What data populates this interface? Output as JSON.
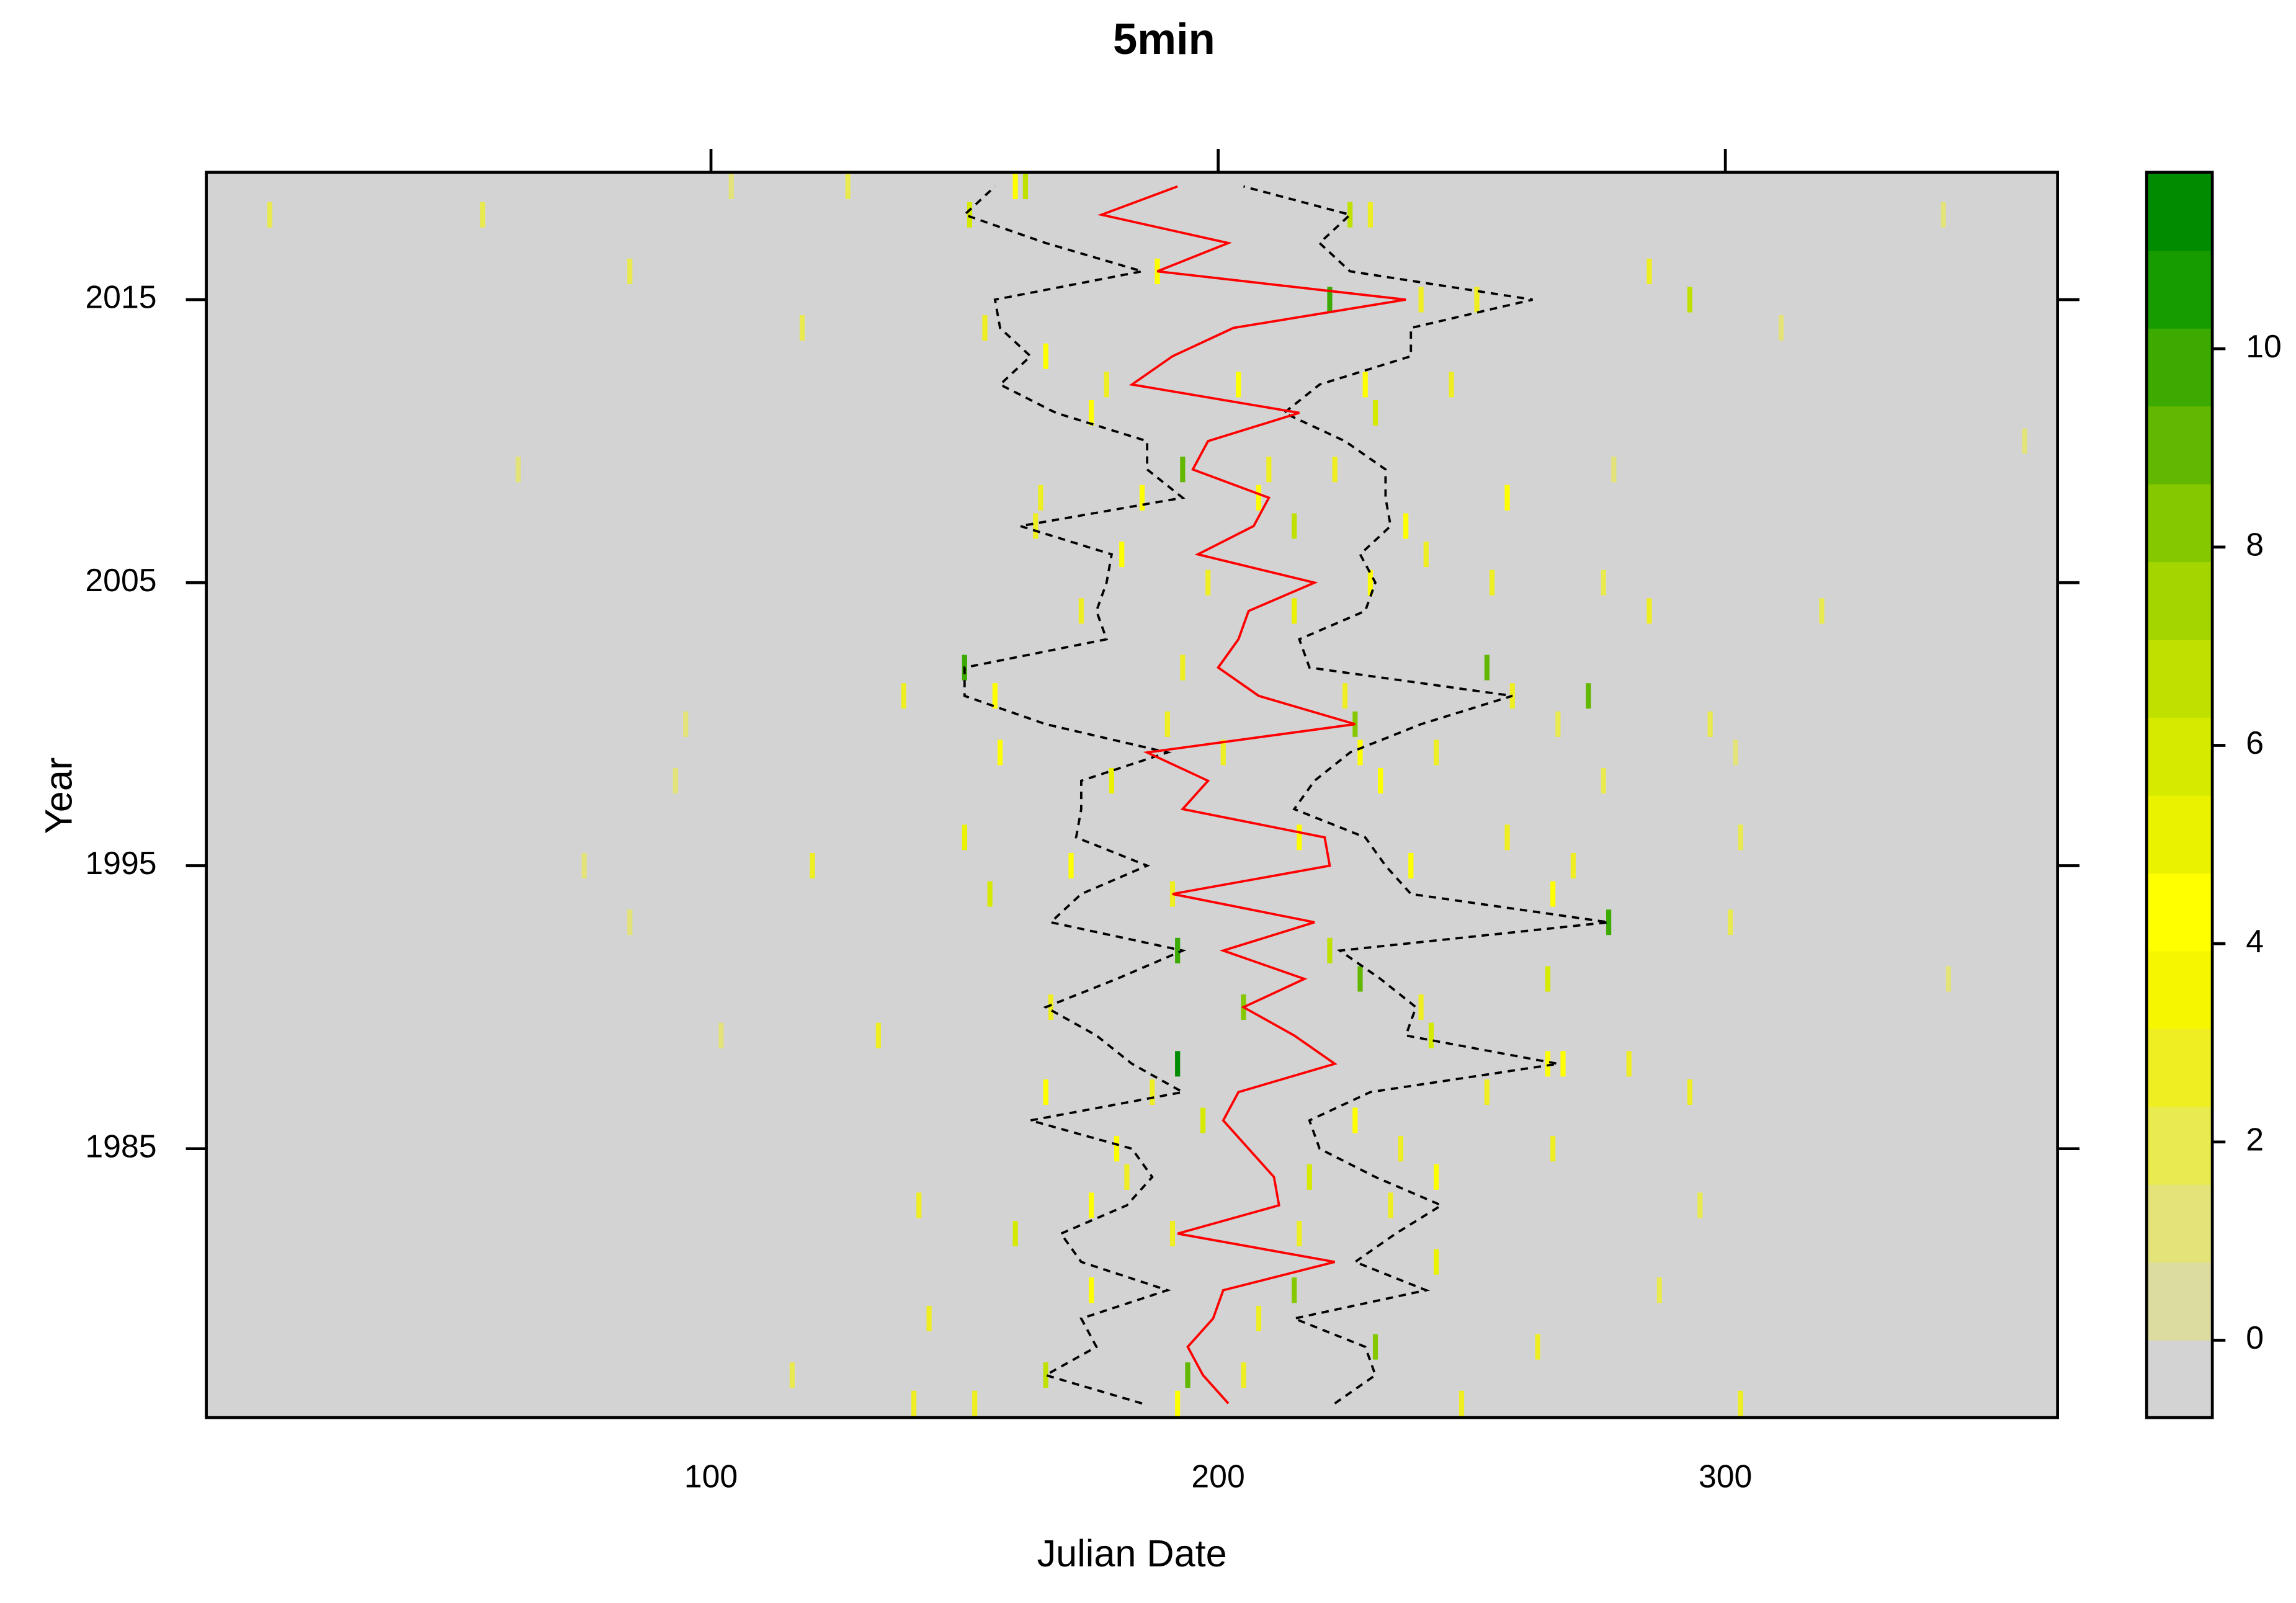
{
  "chart_data": {
    "type": "levelplot",
    "title": "5min",
    "x_label": "Julian Date",
    "y_label": "Year",
    "xlim": [
      0.5,
      365.5
    ],
    "xticks": [
      100,
      200,
      300
    ],
    "ylim": [
      1975.5,
      2019.5
    ],
    "yticks": [
      1985,
      1995,
      2005,
      2015
    ],
    "zlim": [
      -0.78,
      11.78
    ],
    "zticks": [
      0,
      2,
      4,
      6,
      8,
      10
    ],
    "colors": [
      "#d3d3d3",
      "#dcdca0",
      "#e3e37a",
      "#e9e950",
      "#eeee22",
      "#f6f600",
      "#ffff00",
      "#eaf200",
      "#d6ea00",
      "#c0e000",
      "#a5d500",
      "#86c800",
      "#62b800",
      "#3caa00",
      "#179c00",
      "#008c00"
    ],
    "background": "#d3d3d3",
    "tiles": [
      [
        13,
        2018,
        2
      ],
      [
        55,
        2018,
        2
      ],
      [
        104,
        2019,
        1
      ],
      [
        127,
        2019,
        2
      ],
      [
        84,
        2016,
        2
      ],
      [
        62,
        2009,
        1
      ],
      [
        359,
        2010,
        1
      ],
      [
        343,
        2018,
        1
      ],
      [
        319,
        2004,
        2
      ],
      [
        344,
        1991,
        1
      ],
      [
        75,
        1995,
        1
      ],
      [
        84,
        1993,
        1
      ],
      [
        102,
        1989,
        1
      ],
      [
        93,
        1998,
        1
      ],
      [
        95,
        2000,
        1
      ],
      [
        118,
        2014,
        2
      ],
      [
        116,
        1977,
        2
      ],
      [
        151,
        2018,
        6
      ],
      [
        160,
        2019,
        4
      ],
      [
        162,
        2019,
        7
      ],
      [
        226,
        2018,
        7
      ],
      [
        230,
        2018,
        3
      ],
      [
        188,
        2016,
        4
      ],
      [
        222,
        2015,
        10
      ],
      [
        240,
        2015,
        3
      ],
      [
        251,
        2015,
        3
      ],
      [
        285,
        2016,
        3
      ],
      [
        293,
        2015,
        7
      ],
      [
        311,
        2014,
        1
      ],
      [
        154,
        2014,
        3
      ],
      [
        166,
        2013,
        4
      ],
      [
        178,
        2012,
        3
      ],
      [
        204,
        2012,
        4
      ],
      [
        229,
        2012,
        4
      ],
      [
        246,
        2012,
        3
      ],
      [
        175,
        2011,
        4
      ],
      [
        231,
        2011,
        6
      ],
      [
        193,
        2009,
        9
      ],
      [
        210,
        2009,
        3
      ],
      [
        223,
        2009,
        3
      ],
      [
        278,
        2009,
        1
      ],
      [
        165,
        2008,
        3
      ],
      [
        185,
        2008,
        4
      ],
      [
        208,
        2008,
        4
      ],
      [
        257,
        2008,
        4
      ],
      [
        215,
        2007,
        7
      ],
      [
        164,
        2007,
        3
      ],
      [
        237,
        2007,
        4
      ],
      [
        181,
        2006,
        4
      ],
      [
        241,
        2006,
        3
      ],
      [
        198,
        2005,
        3
      ],
      [
        230,
        2005,
        4
      ],
      [
        254,
        2005,
        3
      ],
      [
        276,
        2005,
        2
      ],
      [
        173,
        2004,
        3
      ],
      [
        215,
        2004,
        5
      ],
      [
        285,
        2004,
        3
      ],
      [
        150,
        2002,
        10
      ],
      [
        193,
        2002,
        3
      ],
      [
        253,
        2002,
        9
      ],
      [
        138,
        2001,
        3
      ],
      [
        156,
        2001,
        4
      ],
      [
        225,
        2001,
        3
      ],
      [
        273,
        2001,
        9
      ],
      [
        258,
        2001,
        3
      ],
      [
        190,
        2000,
        3
      ],
      [
        227,
        2000,
        8
      ],
      [
        267,
        2000,
        2
      ],
      [
        297,
        2000,
        2
      ],
      [
        157,
        1999,
        4
      ],
      [
        201,
        1999,
        3
      ],
      [
        228,
        1999,
        4
      ],
      [
        243,
        1999,
        3
      ],
      [
        302,
        1999,
        1
      ],
      [
        179,
        1998,
        5
      ],
      [
        232,
        1998,
        4
      ],
      [
        276,
        1998,
        2
      ],
      [
        150,
        1996,
        5
      ],
      [
        216,
        1996,
        4
      ],
      [
        257,
        1996,
        3
      ],
      [
        303,
        1996,
        2
      ],
      [
        120,
        1995,
        3
      ],
      [
        171,
        1995,
        4
      ],
      [
        238,
        1995,
        4
      ],
      [
        270,
        1995,
        3
      ],
      [
        155,
        1994,
        6
      ],
      [
        191,
        1994,
        3
      ],
      [
        266,
        1994,
        4
      ],
      [
        277,
        1993,
        10
      ],
      [
        301,
        1993,
        2
      ],
      [
        192,
        1992,
        10
      ],
      [
        222,
        1992,
        7
      ],
      [
        228,
        1991,
        9
      ],
      [
        265,
        1991,
        6
      ],
      [
        167,
        1990,
        3
      ],
      [
        205,
        1990,
        8
      ],
      [
        240,
        1990,
        3
      ],
      [
        133,
        1989,
        3
      ],
      [
        242,
        1989,
        6
      ],
      [
        192,
        1988,
        11
      ],
      [
        265,
        1988,
        4
      ],
      [
        268,
        1988,
        4
      ],
      [
        281,
        1988,
        3
      ],
      [
        166,
        1987,
        4
      ],
      [
        187,
        1987,
        3
      ],
      [
        293,
        1987,
        3
      ],
      [
        253,
        1987,
        3
      ],
      [
        197,
        1986,
        6
      ],
      [
        227,
        1986,
        4
      ],
      [
        180,
        1985,
        4
      ],
      [
        236,
        1985,
        3
      ],
      [
        266,
        1985,
        3
      ],
      [
        218,
        1984,
        6
      ],
      [
        243,
        1984,
        4
      ],
      [
        182,
        1984,
        3
      ],
      [
        141,
        1983,
        3
      ],
      [
        175,
        1983,
        4
      ],
      [
        234,
        1983,
        3
      ],
      [
        295,
        1983,
        2
      ],
      [
        160,
        1982,
        6
      ],
      [
        191,
        1982,
        3
      ],
      [
        216,
        1982,
        3
      ],
      [
        243,
        1981,
        5
      ],
      [
        215,
        1980,
        8
      ],
      [
        175,
        1980,
        4
      ],
      [
        287,
        1980,
        2
      ],
      [
        143,
        1979,
        3
      ],
      [
        208,
        1979,
        3
      ],
      [
        231,
        1978,
        8
      ],
      [
        263,
        1978,
        3
      ],
      [
        194,
        1977,
        9
      ],
      [
        166,
        1977,
        7
      ],
      [
        205,
        1977,
        3
      ],
      [
        303,
        1976,
        3
      ],
      [
        152,
        1976,
        3
      ],
      [
        192,
        1976,
        4
      ],
      [
        140,
        1976,
        3
      ],
      [
        248,
        1976,
        3
      ]
    ],
    "years": [
      1976,
      1977,
      1978,
      1979,
      1980,
      1981,
      1982,
      1983,
      1984,
      1985,
      1986,
      1987,
      1988,
      1989,
      1990,
      1991,
      1992,
      1993,
      1994,
      1995,
      1996,
      1997,
      1998,
      1999,
      2000,
      2001,
      2002,
      2003,
      2004,
      2005,
      2006,
      2007,
      2008,
      2009,
      2010,
      2011,
      2012,
      2013,
      2014,
      2015,
      2016,
      2017,
      2018,
      2019
    ],
    "series": [
      {
        "color": "#000000",
        "dashed": true,
        "values": [
          185,
          166,
          176,
          173,
          190,
          173,
          169,
          182,
          187,
          183,
          163,
          193,
          183,
          176,
          166,
          180,
          193,
          167,
          173,
          186,
          172,
          173,
          173,
          190,
          166,
          150,
          150,
          178,
          176,
          178,
          179,
          161,
          193,
          186,
          186,
          168,
          157,
          163,
          157,
          156,
          185,
          166,
          150,
          156
        ]
      },
      {
        "color": "#000000",
        "dashed": true,
        "values": [
          223,
          231,
          229,
          215,
          241,
          227,
          235,
          244,
          231,
          220,
          218,
          230,
          267,
          237,
          239,
          232,
          224,
          277,
          238,
          233,
          229,
          215,
          219,
          226,
          240,
          258,
          218,
          216,
          229,
          231,
          228,
          234,
          233,
          233,
          225,
          213,
          220,
          238,
          238,
          262,
          226,
          220,
          226,
          205
        ]
      },
      {
        "color": "#ff0000",
        "dashed": false,
        "values": [
          202,
          197,
          194,
          199,
          201,
          223,
          192,
          212,
          211,
          206,
          201,
          204,
          223,
          215,
          205,
          217,
          201,
          219,
          191,
          222,
          221,
          193,
          198,
          186,
          227,
          208,
          200,
          204,
          206,
          219,
          196,
          207,
          210,
          195,
          198,
          216,
          183,
          191,
          203,
          237,
          188,
          202,
          177,
          192
        ]
      }
    ]
  }
}
